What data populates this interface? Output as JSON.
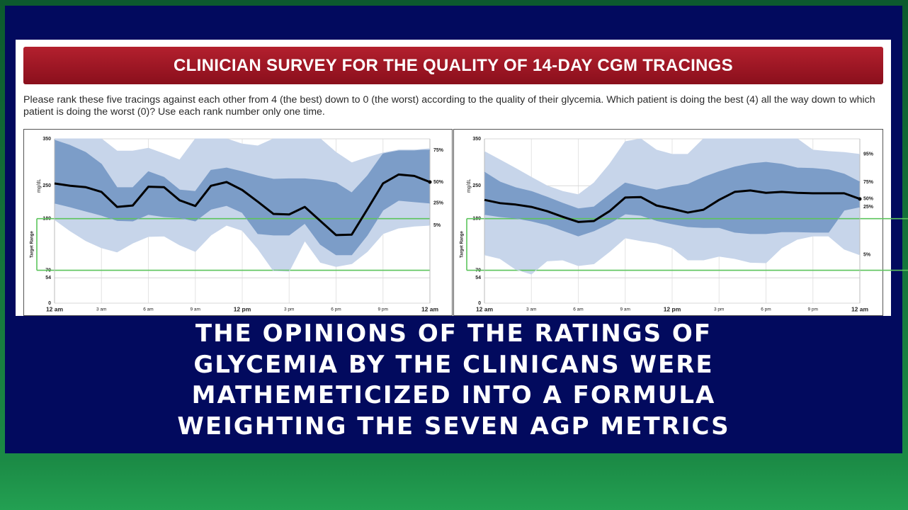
{
  "slide": {
    "title": "CLINICIAN SURVEY FOR THE QUALITY OF 14-DAY CGM TRACINGS",
    "instructions": "Please rank these five tracings against each other from 4 (the best) down to 0 (the worst) according to the quality of their glycemia. Which patient is doing the best (4) all the way down to which patient is doing the worst (0)? Use each rank number only one time.",
    "caption": [
      "THE OPINIONS OF THE RATINGS OF",
      "GLYCEMIA BY THE CLINICANS WERE",
      "MATHEMETICIZED INTO A FORMULA",
      "WEIGHTING THE SEVEN AGP METRICS"
    ]
  },
  "chart_data": [
    {
      "type": "agp",
      "ylabel": "mg/dL",
      "target_label": "Target Range",
      "target_range": [
        70,
        180
      ],
      "target_color": "#5cc45c",
      "x": [
        0,
        1,
        2,
        3,
        4,
        5,
        6,
        7,
        8,
        9,
        10,
        11,
        12,
        13,
        14,
        15,
        16,
        17,
        18,
        19,
        20,
        21,
        22,
        23,
        24
      ],
      "xlim": [
        0,
        24
      ],
      "xticks": [
        {
          "value": 0,
          "label": "12 am"
        },
        {
          "value": 3,
          "label": "3 am"
        },
        {
          "value": 6,
          "label": "6 am"
        },
        {
          "value": 9,
          "label": "9 am"
        },
        {
          "value": 12,
          "label": "12 pm"
        },
        {
          "value": 15,
          "label": "3 pm"
        },
        {
          "value": 18,
          "label": "6 pm"
        },
        {
          "value": 21,
          "label": "9 pm"
        },
        {
          "value": 24,
          "label": "12 am"
        }
      ],
      "ylim": [
        0,
        350
      ],
      "yticks": [
        0,
        54,
        70,
        180,
        250,
        350
      ],
      "series": [
        {
          "name": "5%",
          "color": "#c7d5ea",
          "values": [
            178,
            154,
            133,
            118,
            109,
            128,
            142,
            143,
            124,
            110,
            145,
            166,
            155,
            116,
            69,
            68,
            133,
            87,
            78,
            84,
            110,
            148,
            160,
            164,
            166
          ]
        },
        {
          "name": "25%",
          "color": "#7c9dc8",
          "values": [
            213,
            205,
            196,
            187,
            176,
            175,
            189,
            184,
            182,
            175,
            200,
            208,
            193,
            148,
            145,
            145,
            170,
            125,
            103,
            103,
            145,
            198,
            219,
            216,
            213
          ]
        },
        {
          "name": "50%",
          "color": "#000000",
          "values": [
            255,
            250,
            247,
            237,
            205,
            208,
            248,
            247,
            219,
            207,
            250,
            258,
            241,
            216,
            190,
            189,
            205,
            175,
            145,
            146,
            200,
            255,
            274,
            271,
            258
          ]
        },
        {
          "name": "75%",
          "color": "#7c9dc8",
          "values": [
            347,
            336,
            321,
            296,
            246,
            246,
            280,
            268,
            241,
            238,
            283,
            288,
            280,
            271,
            264,
            265,
            265,
            262,
            256,
            235,
            271,
            318,
            326,
            326,
            326
          ]
        },
        {
          "color": "#c7d5ea",
          "values": [
            350,
            350,
            350,
            350,
            324,
            324,
            330,
            318,
            305,
            350,
            350,
            350,
            339,
            335,
            350,
            350,
            350,
            350,
            321,
            299,
            310,
            320,
            326,
            326,
            329
          ]
        }
      ]
    },
    {
      "type": "agp",
      "ylabel": "mg/dL",
      "target_label": "Target Range",
      "target_range": [
        70,
        180
      ],
      "target_color": "#5cc45c",
      "x": [
        0,
        1,
        2,
        3,
        4,
        5,
        6,
        7,
        8,
        9,
        10,
        11,
        12,
        13,
        14,
        15,
        16,
        17,
        18,
        19,
        20,
        21,
        22,
        23,
        24
      ],
      "xlim": [
        0,
        24
      ],
      "xticks": [
        {
          "value": 0,
          "label": "12 am"
        },
        {
          "value": 3,
          "label": "3 am"
        },
        {
          "value": 6,
          "label": "6 am"
        },
        {
          "value": 9,
          "label": "9 am"
        },
        {
          "value": 12,
          "label": "12 pm"
        },
        {
          "value": 15,
          "label": "3 pm"
        },
        {
          "value": 18,
          "label": "6 pm"
        },
        {
          "value": 21,
          "label": "9 pm"
        },
        {
          "value": 24,
          "label": "12 am"
        }
      ],
      "ylim": [
        0,
        350
      ],
      "yticks": [
        0,
        54,
        70,
        180,
        250,
        350
      ],
      "series": [
        {
          "name": "5%",
          "color": "#c7d5ea",
          "values": [
            103,
            95,
            72,
            62,
            90,
            92,
            80,
            84,
            110,
            139,
            133,
            128,
            118,
            92,
            92,
            100,
            95,
            87,
            86,
            118,
            136,
            143,
            143,
            115,
            103
          ]
        },
        {
          "name": "25%",
          "color": "#7c9dc8",
          "values": [
            189,
            184,
            181,
            175,
            167,
            155,
            143,
            154,
            170,
            190,
            187,
            176,
            169,
            163,
            161,
            161,
            151,
            148,
            148,
            152,
            152,
            151,
            151,
            198,
            205
          ]
        },
        {
          "name": "50%",
          "color": "#000000",
          "values": [
            220,
            213,
            210,
            205,
            196,
            184,
            173,
            175,
            196,
            225,
            226,
            208,
            201,
            193,
            199,
            220,
            237,
            240,
            235,
            237,
            235,
            234,
            234,
            234,
            222
          ]
        },
        {
          "name": "75%",
          "color": "#7c9dc8",
          "values": [
            279,
            258,
            246,
            238,
            226,
            213,
            201,
            205,
            231,
            256,
            248,
            241,
            248,
            253,
            268,
            280,
            290,
            297,
            300,
            296,
            288,
            287,
            284,
            275,
            258
          ]
        },
        {
          "name": "95%",
          "color": "#c7d5ea",
          "values": [
            323,
            305,
            287,
            268,
            250,
            238,
            231,
            256,
            296,
            344,
            350,
            326,
            317,
            317,
            350,
            350,
            350,
            350,
            350,
            350,
            350,
            326,
            323,
            321,
            317
          ]
        }
      ]
    }
  ]
}
